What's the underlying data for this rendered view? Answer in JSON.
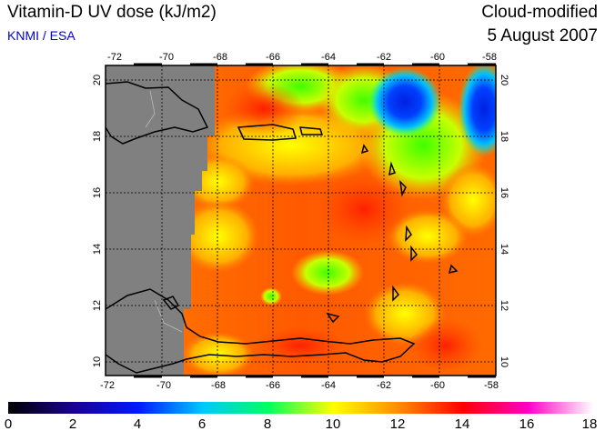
{
  "header": {
    "title": "Vitamin-D UV dose (kJ/m2)",
    "credit": "KNMI / ESA",
    "mode": "Cloud-modified",
    "date": "5 August 2007"
  },
  "map": {
    "lon_ticks": [
      "-72",
      "-70",
      "-68",
      "-66",
      "-64",
      "-62",
      "-60",
      "-58"
    ],
    "lat_ticks": [
      "10",
      "12",
      "14",
      "16",
      "18",
      "20"
    ],
    "lon_range": [
      -72,
      -58
    ],
    "lat_range": [
      9.5,
      20.5
    ],
    "grid": true,
    "missing_color": "#808080"
  },
  "colorbar": {
    "labels": [
      "0",
      "2",
      "4",
      "6",
      "8",
      "10",
      "12",
      "14",
      "16",
      "18"
    ],
    "range": [
      0,
      18
    ],
    "colors": [
      "#000000",
      "#1a0090",
      "#0018ff",
      "#00c8ff",
      "#00ff60",
      "#ffff00",
      "#ff8c00",
      "#ff0000",
      "#ff00c8",
      "#ffffff"
    ]
  }
}
